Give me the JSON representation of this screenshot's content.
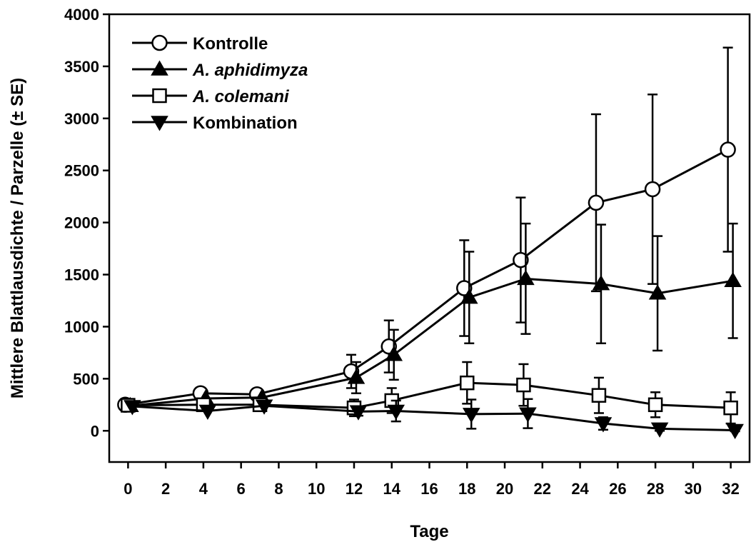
{
  "chart_data": {
    "type": "line",
    "title": "",
    "xlabel": "Tage",
    "ylabel": "Mittlere Blattlausdichte / Parzelle (± SE)",
    "xlim": [
      -1,
      33
    ],
    "ylim": [
      -300,
      4000
    ],
    "xticks": [
      0,
      2,
      4,
      6,
      8,
      10,
      12,
      14,
      16,
      18,
      20,
      22,
      24,
      26,
      28,
      30,
      32
    ],
    "yticks": [
      0,
      500,
      1000,
      1500,
      2000,
      2500,
      3000,
      3500,
      4000
    ],
    "grid": false,
    "legend_position": "top-left",
    "series": [
      {
        "name": "Kontrolle",
        "marker": "circle-open",
        "italic": false,
        "x": [
          0,
          4,
          7,
          12,
          14,
          18,
          21,
          25,
          28,
          32
        ],
        "y": [
          250,
          360,
          350,
          570,
          810,
          1370,
          1640,
          2190,
          2320,
          2700
        ],
        "err": [
          0,
          0,
          0,
          160,
          250,
          460,
          600,
          850,
          910,
          980
        ]
      },
      {
        "name": "A. aphidimyza",
        "marker": "triangle-up-filled",
        "italic": true,
        "x": [
          0,
          4,
          7,
          12,
          14,
          18,
          21,
          25,
          28,
          32
        ],
        "y": [
          240,
          310,
          320,
          510,
          730,
          1280,
          1460,
          1410,
          1320,
          1440
        ],
        "err": [
          0,
          0,
          0,
          150,
          240,
          440,
          530,
          570,
          550,
          550
        ]
      },
      {
        "name": "A. colemani",
        "marker": "square-open",
        "italic": true,
        "x": [
          0,
          4,
          7,
          12,
          14,
          18,
          21,
          25,
          28,
          32
        ],
        "y": [
          245,
          250,
          250,
          220,
          290,
          460,
          440,
          340,
          250,
          220
        ],
        "err": [
          0,
          0,
          0,
          80,
          120,
          200,
          200,
          170,
          120,
          150
        ]
      },
      {
        "name": "Kombination",
        "marker": "triangle-down-filled",
        "italic": false,
        "x": [
          0,
          4,
          7,
          12,
          14,
          18,
          21,
          25,
          28,
          32
        ],
        "y": [
          235,
          190,
          240,
          185,
          190,
          160,
          165,
          70,
          20,
          5
        ],
        "err": [
          0,
          0,
          0,
          40,
          100,
          140,
          140,
          60,
          20,
          10
        ]
      }
    ]
  }
}
